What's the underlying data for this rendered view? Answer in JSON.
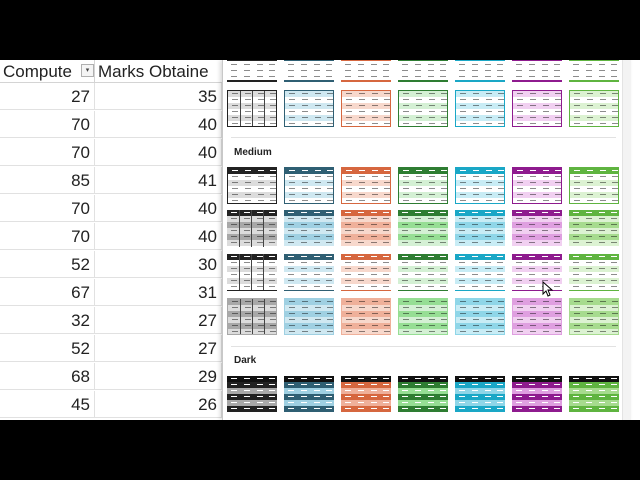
{
  "sheet": {
    "headers": [
      "Compute",
      "Marks Obtaine"
    ],
    "col1": [
      "27",
      "70",
      "70",
      "85",
      "70",
      "70",
      "52",
      "67",
      "32",
      "52",
      "68",
      "45"
    ],
    "col2": [
      "35",
      "40",
      "40",
      "41",
      "40",
      "40",
      "30",
      "31",
      "27",
      "27",
      "29",
      "26"
    ]
  },
  "gallery": {
    "sections": [
      {
        "title": ""
      },
      {
        "title": "Medium"
      },
      {
        "title": "Dark"
      }
    ],
    "palette": {
      "black": {
        "strong": "#222222",
        "light": "#dcdcdc",
        "mid": "#a8a8a8"
      },
      "blue": {
        "strong": "#2f5f73",
        "light": "#cfe8f1",
        "mid": "#9fd0e2"
      },
      "orange": {
        "strong": "#d6673f",
        "light": "#f7d8cc",
        "mid": "#efb09a"
      },
      "green": {
        "strong": "#2e7d32",
        "light": "#d4f0d4",
        "mid": "#96de94"
      },
      "cyan": {
        "strong": "#1aa7c6",
        "light": "#c8ecf5",
        "mid": "#8fd6e8"
      },
      "purple": {
        "strong": "#8e1b8e",
        "light": "#f1d0f1",
        "mid": "#df9fe0"
      },
      "lime": {
        "strong": "#5fb440",
        "light": "#dcf2d2",
        "mid": "#a6db8e"
      }
    },
    "order": [
      "black",
      "blue",
      "orange",
      "green",
      "cyan",
      "purple",
      "lime"
    ]
  }
}
